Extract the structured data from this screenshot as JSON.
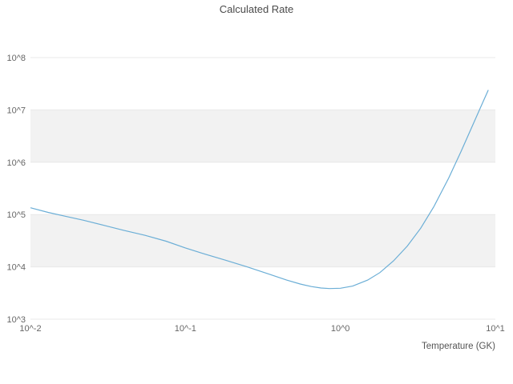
{
  "chart_data": {
    "type": "line",
    "title": "Calculated Rate",
    "xlabel": "Temperature (GK)",
    "ylabel": "",
    "xscale": "log",
    "yscale": "log",
    "xlim": [
      0.01,
      10
    ],
    "ylim": [
      1000,
      100000000
    ],
    "x_ticks": [
      {
        "value": 0.01,
        "label": "10^-2"
      },
      {
        "value": 0.1,
        "label": "10^-1"
      },
      {
        "value": 1,
        "label": "10^0"
      },
      {
        "value": 10,
        "label": "10^1"
      }
    ],
    "y_ticks": [
      {
        "value": 1000,
        "label": "10^3"
      },
      {
        "value": 10000,
        "label": "10^4"
      },
      {
        "value": 100000,
        "label": "10^5"
      },
      {
        "value": 1000000,
        "label": "10^6"
      },
      {
        "value": 10000000,
        "label": "10^7"
      },
      {
        "value": 100000000,
        "label": "10^8"
      }
    ],
    "grid": true,
    "legend": "none",
    "line_color": "#6baed6",
    "band_color": "#f2f2f2",
    "grid_color": "#e8e8e8",
    "series": [
      {
        "name": "calculated-rate",
        "x": [
          0.01,
          0.013,
          0.017,
          0.022,
          0.03,
          0.04,
          0.055,
          0.075,
          0.1,
          0.13,
          0.18,
          0.25,
          0.35,
          0.45,
          0.55,
          0.65,
          0.75,
          0.85,
          1.0,
          1.2,
          1.5,
          1.8,
          2.2,
          2.7,
          3.3,
          4.0,
          5.0,
          6.0,
          7.0,
          8.0,
          9.0
        ],
        "y": [
          135000,
          110000,
          92000,
          78000,
          62000,
          50000,
          40000,
          31000,
          23000,
          18000,
          13500,
          10000,
          7200,
          5600,
          4700,
          4200,
          3950,
          3850,
          3900,
          4300,
          5600,
          7800,
          13000,
          25000,
          55000,
          140000,
          500000,
          1600000,
          4500000,
          11000000,
          24000000
        ]
      }
    ]
  }
}
